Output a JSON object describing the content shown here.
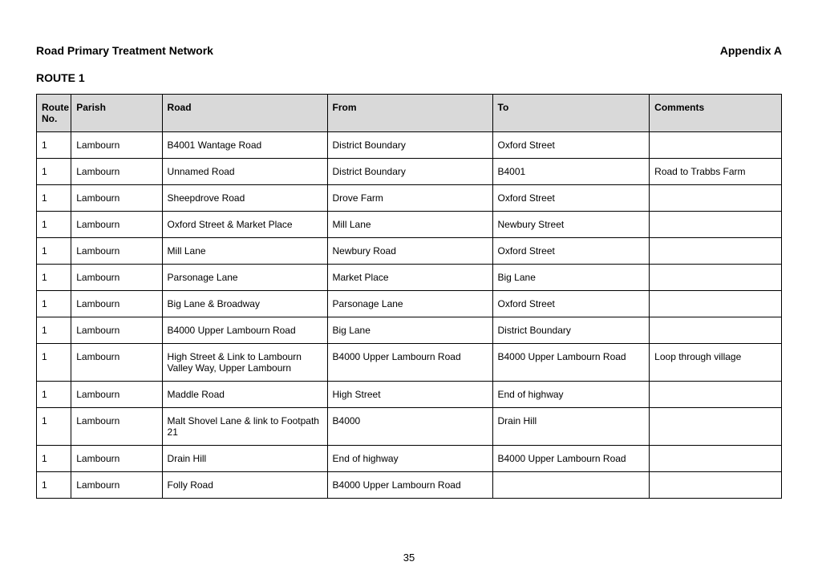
{
  "header": {
    "title_left": "Road Primary Treatment Network",
    "title_right": "Appendix A"
  },
  "route_heading": "ROUTE 1",
  "table": {
    "columns": [
      "Route No.",
      "Parish",
      "Road",
      "From",
      "To",
      "Comments"
    ],
    "rows": [
      [
        "1",
        "Lambourn",
        "B4001 Wantage Road",
        "District Boundary",
        "Oxford Street",
        ""
      ],
      [
        "1",
        "Lambourn",
        "Unnamed Road",
        "District Boundary",
        "B4001",
        "Road to Trabbs Farm"
      ],
      [
        "1",
        "Lambourn",
        "Sheepdrove Road",
        "Drove Farm",
        "Oxford Street",
        ""
      ],
      [
        "1",
        "Lambourn",
        "Oxford Street & Market Place",
        "Mill Lane",
        "Newbury Street",
        ""
      ],
      [
        "1",
        "Lambourn",
        "Mill Lane",
        "Newbury Road",
        "Oxford Street",
        ""
      ],
      [
        "1",
        "Lambourn",
        "Parsonage Lane",
        "Market Place",
        "Big Lane",
        ""
      ],
      [
        "1",
        "Lambourn",
        "Big Lane &  Broadway",
        "Parsonage Lane",
        "Oxford Street",
        ""
      ],
      [
        "1",
        "Lambourn",
        "B4000 Upper Lambourn Road",
        "Big Lane",
        "District Boundary",
        ""
      ],
      [
        "1",
        "Lambourn",
        "High Street & Link to Lambourn Valley Way, Upper Lambourn",
        "B4000 Upper Lambourn Road",
        "B4000 Upper Lambourn Road",
        "Loop through village"
      ],
      [
        "1",
        "Lambourn",
        "Maddle Road",
        "High Street",
        "End of highway",
        ""
      ],
      [
        "1",
        "Lambourn",
        "Malt Shovel Lane & link to Footpath 21",
        "B4000",
        "Drain Hill",
        ""
      ],
      [
        "1",
        "Lambourn",
        "Drain Hill",
        "End of highway",
        "B4000 Upper Lambourn Road",
        ""
      ],
      [
        "1",
        "Lambourn",
        "Folly Road",
        "B4000 Upper Lambourn Road",
        "",
        ""
      ]
    ]
  },
  "page_number": "35"
}
